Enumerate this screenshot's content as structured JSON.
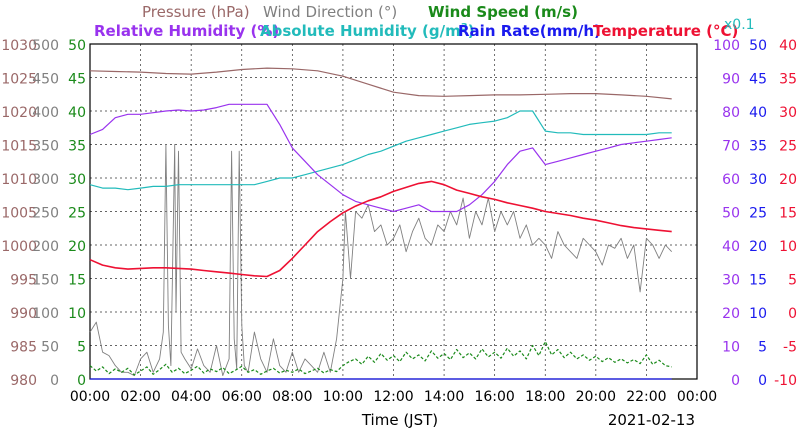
{
  "chart_data": {
    "type": "line",
    "date": "2021-02-13",
    "xlabel": "Time (JST)",
    "x_ticks": [
      "00:00",
      "02:00",
      "04:00",
      "06:00",
      "08:00",
      "10:00",
      "12:00",
      "14:00",
      "16:00",
      "18:00",
      "20:00",
      "22:00",
      "00:00"
    ],
    "xlim": [
      0,
      24
    ],
    "grid": true,
    "legend": {
      "row1": [
        {
          "key": "pressure",
          "text": "Pressure (hPa)",
          "color": "#9a6868"
        },
        {
          "key": "wind_direction",
          "text": "Wind Direction (°)",
          "color": "#808080"
        },
        {
          "key": "wind_speed",
          "text": "Wind Speed (m/s)",
          "color": "#1a8a1a"
        }
      ],
      "row2": [
        {
          "key": "relative_humidity",
          "text": "Relative Humidity (%)",
          "color": "#9933ee"
        },
        {
          "key": "absolute_humidity",
          "text": "Absolute Humidity (g/m",
          "sup": "3",
          "tail": ")",
          "color": "#22bbbb"
        },
        {
          "key": "rain_rate",
          "text": "Rain Rate(mm/h)",
          "color": "#1a1aee"
        },
        {
          "key": "temperature",
          "text": "Temperature (°C)",
          "color": "#ee1133"
        }
      ],
      "abs_humidity_scale_note": "x0.1"
    },
    "axes": {
      "pressure": {
        "color": "#9a6868",
        "ticks": [
          "980",
          "985",
          "990",
          "995",
          "1000",
          "1005",
          "1010",
          "1015",
          "1020",
          "1025",
          "1030"
        ]
      },
      "wind_direction": {
        "color": "#808080",
        "ticks": [
          "0",
          "50",
          "100",
          "150",
          "200",
          "250",
          "300",
          "350",
          "400",
          "450",
          "500"
        ]
      },
      "wind_speed": {
        "color": "#1a8a1a",
        "ticks": [
          "0",
          "5",
          "10",
          "15",
          "20",
          "25",
          "30",
          "35",
          "40",
          "45",
          "50"
        ]
      },
      "humidity": {
        "color": "#9933ee",
        "ticks": [
          "0",
          "10",
          "20",
          "30",
          "40",
          "50",
          "60",
          "70",
          "80",
          "90",
          "100"
        ]
      },
      "rain_rate": {
        "color": "#1a1aee",
        "ticks": [
          "0",
          "5",
          "10",
          "15",
          "20",
          "25",
          "30",
          "35",
          "40",
          "45",
          "50"
        ]
      },
      "temperature": {
        "color": "#ee1133",
        "ticks": [
          "-10",
          "-5",
          "0",
          "5",
          "10",
          "15",
          "20",
          "25",
          "30",
          "35",
          "40"
        ]
      }
    },
    "series": [
      {
        "key": "pressure",
        "name": "Pressure (hPa)",
        "color": "#9a6868",
        "ylim": [
          980,
          1030
        ],
        "x": [
          0,
          1,
          2,
          3,
          4,
          5,
          6,
          7,
          8,
          9,
          10,
          11,
          12,
          13,
          14,
          15,
          16,
          17,
          18,
          19,
          20,
          21,
          22,
          23
        ],
        "y": [
          1026.0,
          1025.9,
          1025.8,
          1025.6,
          1025.5,
          1025.8,
          1026.2,
          1026.4,
          1026.3,
          1026.0,
          1025.2,
          1024.0,
          1022.8,
          1022.3,
          1022.2,
          1022.3,
          1022.4,
          1022.4,
          1022.5,
          1022.6,
          1022.6,
          1022.4,
          1022.2,
          1021.8
        ]
      },
      {
        "key": "relative_humidity",
        "name": "Relative Humidity (%)",
        "color": "#9933ee",
        "ylim": [
          0,
          100
        ],
        "x": [
          0,
          0.5,
          1,
          1.5,
          2,
          2.5,
          3,
          3.5,
          4,
          4.5,
          5,
          5.5,
          6,
          6.5,
          7,
          7.5,
          8,
          8.5,
          9,
          9.5,
          10,
          10.5,
          11,
          11.5,
          12,
          12.5,
          13,
          13.5,
          14,
          14.5,
          15,
          15.5,
          16,
          16.5,
          17,
          17.5,
          18,
          18.5,
          19,
          19.5,
          20,
          20.5,
          21,
          21.5,
          22,
          22.5,
          23
        ],
        "y": [
          73,
          74.5,
          78,
          79,
          79,
          79.5,
          80,
          80.3,
          80,
          80.3,
          81,
          82,
          82,
          82,
          82,
          76,
          69,
          65,
          61,
          58,
          55,
          53,
          52,
          51,
          50,
          51,
          52,
          50,
          50,
          50,
          52,
          55,
          59,
          64,
          68,
          69,
          64,
          65,
          66,
          67,
          68,
          69,
          70,
          70.5,
          71,
          71.5,
          72
        ]
      },
      {
        "key": "absolute_humidity",
        "name": "Absolute Humidity (g/m3)",
        "color": "#22bbbb",
        "ylim": [
          0,
          100
        ],
        "x": [
          0,
          0.5,
          1,
          1.5,
          2,
          2.5,
          3,
          3.5,
          4,
          4.5,
          5,
          5.5,
          6,
          6.5,
          7,
          7.5,
          8,
          8.5,
          9,
          9.5,
          10,
          10.5,
          11,
          11.5,
          12,
          12.5,
          13,
          13.5,
          14,
          14.5,
          15,
          15.5,
          16,
          16.5,
          17,
          17.5,
          18,
          18.5,
          19,
          19.5,
          20,
          20.5,
          21,
          21.5,
          22,
          22.5,
          23
        ],
        "y": [
          58,
          57,
          57,
          56.5,
          57,
          57.5,
          57.5,
          58,
          58,
          58,
          58,
          58,
          58,
          58,
          59,
          60,
          60,
          61,
          62,
          63,
          64,
          65.5,
          67,
          68,
          69.5,
          71,
          72,
          73,
          74,
          75,
          76,
          76.5,
          77,
          78,
          80,
          80,
          74,
          73.5,
          73.5,
          73,
          73,
          73,
          73,
          73,
          73,
          73.5,
          73.5
        ]
      },
      {
        "key": "temperature",
        "name": "Temperature (°C)",
        "color": "#ee1133",
        "ylim": [
          -10,
          40
        ],
        "x": [
          0,
          0.5,
          1,
          1.5,
          2,
          2.5,
          3,
          3.5,
          4,
          4.5,
          5,
          5.5,
          6,
          6.5,
          7,
          7.5,
          8,
          8.5,
          9,
          9.5,
          10,
          10.5,
          11,
          11.5,
          12,
          12.5,
          13,
          13.5,
          14,
          14.5,
          15,
          15.5,
          16,
          16.5,
          17,
          17.5,
          18,
          18.5,
          19,
          19.5,
          20,
          20.5,
          21,
          21.5,
          22,
          22.5,
          23
        ],
        "y": [
          7.8,
          7.0,
          6.6,
          6.4,
          6.5,
          6.6,
          6.6,
          6.5,
          6.4,
          6.2,
          6.0,
          5.8,
          5.6,
          5.4,
          5.3,
          6.2,
          8.0,
          10.0,
          12.0,
          13.5,
          14.8,
          15.8,
          16.6,
          17.2,
          18.0,
          18.6,
          19.2,
          19.5,
          19.0,
          18.2,
          17.7,
          17.2,
          16.8,
          16.3,
          15.9,
          15.5,
          15.0,
          14.7,
          14.4,
          14.0,
          13.7,
          13.3,
          12.9,
          12.6,
          12.4,
          12.2,
          12.0
        ]
      },
      {
        "key": "wind_direction",
        "name": "Wind Direction (°)",
        "color": "#808080",
        "ylim": [
          0,
          500
        ],
        "x": [
          0,
          0.25,
          0.5,
          0.75,
          1,
          1.25,
          1.5,
          1.75,
          2,
          2.25,
          2.5,
          2.75,
          2.9,
          3.0,
          3.1,
          3.2,
          3.35,
          3.4,
          3.5,
          3.6,
          3.75,
          4,
          4.25,
          4.5,
          4.75,
          5,
          5.25,
          5.5,
          5.6,
          5.7,
          5.8,
          5.9,
          6.0,
          6.1,
          6.25,
          6.5,
          6.75,
          7,
          7.25,
          7.5,
          7.75,
          8,
          8.25,
          8.5,
          8.75,
          9,
          9.25,
          9.5,
          9.75,
          10,
          10.1,
          10.3,
          10.5,
          10.75,
          11,
          11.25,
          11.5,
          11.75,
          12,
          12.25,
          12.5,
          12.75,
          13,
          13.25,
          13.5,
          13.75,
          14,
          14.25,
          14.5,
          14.75,
          15,
          15.25,
          15.5,
          15.75,
          16,
          16.25,
          16.5,
          16.75,
          17,
          17.25,
          17.5,
          17.75,
          18,
          18.25,
          18.5,
          18.75,
          19,
          19.25,
          19.5,
          19.75,
          20,
          20.25,
          20.5,
          20.75,
          21,
          21.25,
          21.5,
          21.75,
          22,
          22.25,
          22.5,
          22.75,
          23
        ],
        "y": [
          70,
          85,
          40,
          35,
          20,
          10,
          10,
          5,
          30,
          40,
          10,
          30,
          70,
          350,
          80,
          20,
          350,
          100,
          340,
          40,
          30,
          15,
          45,
          20,
          10,
          50,
          5,
          30,
          340,
          60,
          15,
          340,
          80,
          20,
          10,
          70,
          30,
          10,
          60,
          20,
          10,
          40,
          10,
          30,
          20,
          10,
          40,
          10,
          60,
          150,
          250,
          150,
          250,
          240,
          260,
          220,
          230,
          200,
          210,
          230,
          190,
          220,
          240,
          210,
          200,
          230,
          220,
          250,
          230,
          270,
          210,
          250,
          230,
          270,
          220,
          250,
          230,
          250,
          210,
          230,
          200,
          210,
          200,
          180,
          220,
          200,
          190,
          180,
          210,
          200,
          190,
          170,
          200,
          195,
          210,
          180,
          200,
          130,
          210,
          200,
          180,
          200,
          190
        ]
      },
      {
        "key": "wind_speed",
        "name": "Wind Speed (m/s)",
        "color": "#1a8a1a",
        "ylim": [
          0,
          50
        ],
        "style": "dashed",
        "x": [
          0,
          0.25,
          0.5,
          0.75,
          1,
          1.25,
          1.5,
          1.75,
          2,
          2.25,
          2.5,
          2.75,
          3,
          3.25,
          3.5,
          3.75,
          4,
          4.25,
          4.5,
          4.75,
          5,
          5.25,
          5.5,
          5.75,
          6,
          6.25,
          6.5,
          6.75,
          7,
          7.25,
          7.5,
          7.75,
          8,
          8.25,
          8.5,
          8.75,
          9,
          9.25,
          9.5,
          9.75,
          10,
          10.25,
          10.5,
          10.75,
          11,
          11.25,
          11.5,
          11.75,
          12,
          12.25,
          12.5,
          12.75,
          13,
          13.25,
          13.5,
          13.75,
          14,
          14.25,
          14.5,
          14.75,
          15,
          15.25,
          15.5,
          15.75,
          16,
          16.25,
          16.5,
          16.75,
          17,
          17.25,
          17.5,
          17.75,
          18,
          18.25,
          18.5,
          18.75,
          19,
          19.25,
          19.5,
          19.75,
          20,
          20.25,
          20.5,
          20.75,
          21,
          21.25,
          21.5,
          21.75,
          22,
          22.25,
          22.5,
          22.75,
          23
        ],
        "y": [
          2.0,
          1.2,
          1.8,
          0.8,
          1.5,
          1.0,
          1.6,
          0.6,
          1.2,
          1.8,
          0.7,
          1.4,
          2.2,
          1.0,
          1.6,
          0.8,
          1.3,
          1.9,
          0.9,
          1.5,
          1.1,
          1.7,
          0.8,
          1.3,
          1.9,
          1.0,
          1.4,
          0.7,
          1.2,
          1.6,
          0.9,
          1.3,
          1.0,
          1.5,
          0.8,
          1.2,
          1.6,
          0.9,
          1.4,
          1.1,
          2.0,
          2.6,
          3.0,
          2.2,
          3.4,
          2.5,
          3.8,
          2.8,
          3.5,
          2.6,
          4.0,
          3.0,
          3.6,
          2.7,
          4.2,
          3.1,
          3.8,
          2.9,
          4.4,
          3.2,
          3.9,
          3.0,
          4.5,
          3.3,
          4.0,
          3.1,
          4.6,
          3.4,
          4.2,
          3.0,
          5.0,
          3.5,
          5.6,
          3.6,
          4.4,
          3.2,
          4.0,
          3.0,
          3.6,
          2.8,
          3.4,
          2.6,
          3.2,
          2.5,
          3.0,
          2.4,
          2.9,
          2.3,
          3.6,
          2.2,
          2.8,
          2.0,
          1.8
        ]
      },
      {
        "key": "rain_rate",
        "name": "Rain Rate(mm/h)",
        "color": "#1a1aee",
        "ylim": [
          0,
          50
        ],
        "x": [
          0,
          23
        ],
        "y": [
          0,
          0
        ]
      }
    ]
  }
}
